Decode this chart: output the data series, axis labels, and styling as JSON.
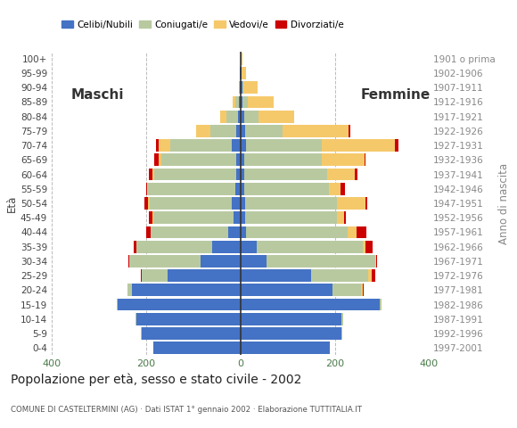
{
  "age_groups": [
    "0-4",
    "5-9",
    "10-14",
    "15-19",
    "20-24",
    "25-29",
    "30-34",
    "35-39",
    "40-44",
    "45-49",
    "50-54",
    "55-59",
    "60-64",
    "65-69",
    "70-74",
    "75-79",
    "80-84",
    "85-89",
    "90-94",
    "95-99",
    "100+"
  ],
  "birth_years": [
    "1997-2001",
    "1992-1996",
    "1987-1991",
    "1982-1986",
    "1977-1981",
    "1972-1976",
    "1967-1971",
    "1962-1966",
    "1957-1961",
    "1952-1956",
    "1947-1951",
    "1942-1946",
    "1937-1941",
    "1932-1936",
    "1927-1931",
    "1922-1926",
    "1917-1921",
    "1912-1916",
    "1907-1911",
    "1902-1906",
    "1901 o prima"
  ],
  "males": {
    "celibe": [
      185,
      210,
      220,
      260,
      230,
      155,
      85,
      60,
      25,
      15,
      18,
      10,
      8,
      8,
      18,
      8,
      5,
      3,
      2,
      2,
      0
    ],
    "coniugato": [
      0,
      1,
      2,
      2,
      10,
      55,
      150,
      160,
      165,
      170,
      175,
      185,
      175,
      160,
      130,
      55,
      25,
      8,
      2,
      0,
      0
    ],
    "vedovo": [
      0,
      0,
      0,
      0,
      0,
      0,
      0,
      1,
      1,
      1,
      2,
      2,
      3,
      5,
      25,
      30,
      12,
      5,
      0,
      0,
      0
    ],
    "divorziato": [
      0,
      0,
      0,
      0,
      0,
      1,
      2,
      5,
      8,
      8,
      8,
      3,
      8,
      10,
      5,
      0,
      0,
      0,
      0,
      0,
      0
    ]
  },
  "females": {
    "nubile": [
      190,
      215,
      215,
      295,
      195,
      150,
      55,
      35,
      12,
      10,
      10,
      8,
      8,
      8,
      12,
      10,
      8,
      5,
      4,
      3,
      1
    ],
    "coniugata": [
      0,
      1,
      2,
      5,
      60,
      120,
      230,
      225,
      215,
      195,
      195,
      180,
      175,
      165,
      160,
      80,
      30,
      10,
      2,
      0,
      0
    ],
    "vedova": [
      0,
      0,
      0,
      0,
      5,
      8,
      2,
      5,
      20,
      15,
      60,
      25,
      60,
      90,
      155,
      140,
      75,
      55,
      30,
      8,
      3
    ],
    "divorziata": [
      0,
      0,
      0,
      0,
      2,
      8,
      2,
      15,
      20,
      3,
      3,
      8,
      5,
      2,
      8,
      3,
      0,
      0,
      0,
      0,
      0
    ]
  },
  "colors": {
    "celibe": "#4472c4",
    "coniugato": "#b8c9a0",
    "vedovo": "#f5c96a",
    "divorziato": "#cc0000"
  },
  "xlim": 400,
  "title": "Popolazione per età, sesso e stato civile - 2002",
  "subtitle": "COMUNE DI CASTELTERMINI (AG) · Dati ISTAT 1° gennaio 2002 · Elaborazione TUTTITALIA.IT",
  "ylabel_left": "Età",
  "ylabel_right": "Anno di nascita",
  "label_maschi": "Maschi",
  "label_femmine": "Femmine",
  "legend_labels": [
    "Celibi/Nubili",
    "Coniugati/e",
    "Vedovi/e",
    "Divorziati/e"
  ],
  "background_color": "#ffffff",
  "grid_color": "#bbbbbb"
}
